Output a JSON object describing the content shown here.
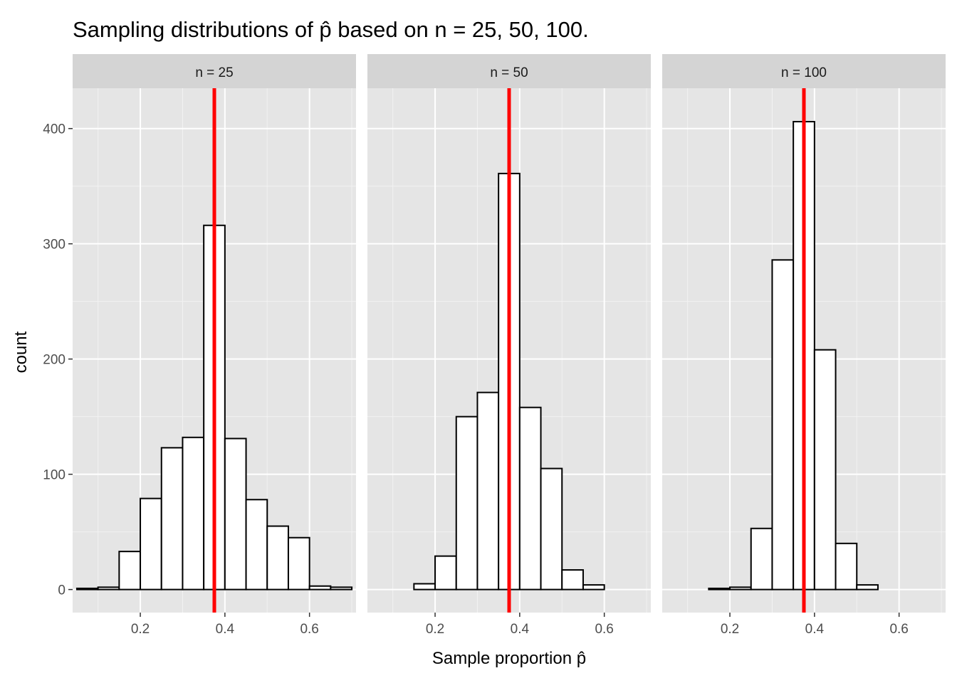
{
  "chart_data": {
    "type": "bar",
    "title": "Sampling distributions of p̂ based on n = 25, 50, 100.",
    "xlabel": "Sample proportion p̂",
    "ylabel": "count",
    "xlim": [
      0.04,
      0.71
    ],
    "ylim": [
      -20,
      435
    ],
    "x_ticks": [
      0.2,
      0.4,
      0.6
    ],
    "x_tick_labels": [
      "0.2",
      "0.4",
      "0.6"
    ],
    "y_ticks": [
      0,
      100,
      200,
      300,
      400
    ],
    "y_tick_labels": [
      "0",
      "100",
      "200",
      "300",
      "400"
    ],
    "grid": true,
    "bin_width": 0.05,
    "reference_line": {
      "x": 0.375,
      "color": "#ff0000"
    },
    "bar_fill": "#ffffff",
    "bar_stroke": "#000000",
    "panel_background": "#e5e5e5",
    "strip_background": "#d4d4d4",
    "facets": [
      {
        "label": "n = 25",
        "bin_centers": [
          0.075,
          0.125,
          0.175,
          0.225,
          0.275,
          0.325,
          0.375,
          0.425,
          0.475,
          0.525,
          0.575,
          0.625,
          0.675
        ],
        "counts": [
          1,
          2,
          33,
          79,
          123,
          132,
          316,
          131,
          78,
          55,
          45,
          3,
          2
        ]
      },
      {
        "label": "n = 50",
        "bin_centers": [
          0.075,
          0.125,
          0.175,
          0.225,
          0.275,
          0.325,
          0.375,
          0.425,
          0.475,
          0.525,
          0.575,
          0.625,
          0.675
        ],
        "counts": [
          0,
          0,
          5,
          29,
          150,
          171,
          361,
          158,
          105,
          17,
          4,
          0,
          0
        ]
      },
      {
        "label": "n = 100",
        "bin_centers": [
          0.075,
          0.125,
          0.175,
          0.225,
          0.275,
          0.325,
          0.375,
          0.425,
          0.475,
          0.525,
          0.575,
          0.625,
          0.675
        ],
        "counts": [
          0,
          0,
          1,
          2,
          53,
          286,
          406,
          208,
          40,
          4,
          0,
          0,
          0
        ]
      }
    ]
  }
}
